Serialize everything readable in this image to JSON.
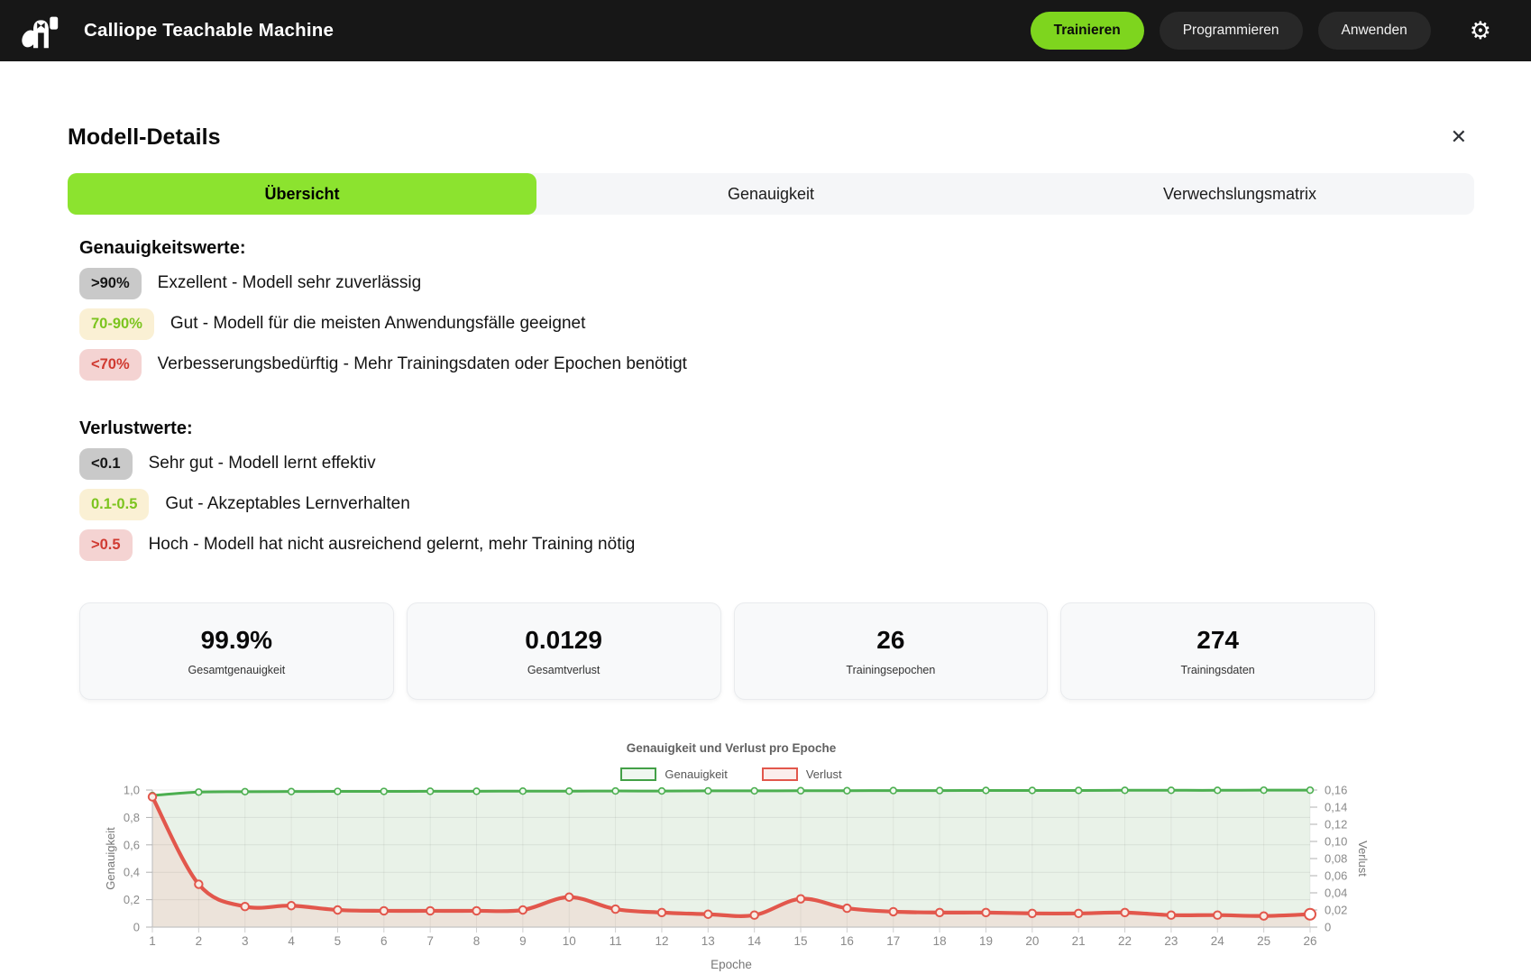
{
  "header": {
    "app_title": "Calliope Teachable Machine",
    "nav": [
      {
        "label": "Trainieren",
        "active": true
      },
      {
        "label": "Programmieren",
        "active": false
      },
      {
        "label": "Anwenden",
        "active": false
      }
    ],
    "settings_glyph": "⚙"
  },
  "modal": {
    "title": "Modell-Details",
    "close_glyph": "✕",
    "tabs": [
      {
        "label": "Übersicht",
        "active": true
      },
      {
        "label": "Genauigkeit",
        "active": false
      },
      {
        "label": "Verwechslungsmatrix",
        "active": false
      }
    ],
    "accuracy_info": {
      "heading": "Genauigkeitswerte:",
      "rows": [
        {
          "badge": ">90%",
          "level": "neutral",
          "text": "Exzellent - Modell sehr zuverlässig"
        },
        {
          "badge": "70-90%",
          "level": "good",
          "text": "Gut - Modell für die meisten Anwendungsfälle geeignet"
        },
        {
          "badge": "<70%",
          "level": "bad",
          "text": "Verbesserungsbedürftig - Mehr Trainingsdaten oder Epochen benötigt"
        }
      ]
    },
    "loss_info": {
      "heading": "Verlustwerte:",
      "rows": [
        {
          "badge": "<0.1",
          "level": "neutral",
          "text": "Sehr gut - Modell lernt effektiv"
        },
        {
          "badge": "0.1-0.5",
          "level": "good",
          "text": "Gut - Akzeptables Lernverhalten"
        },
        {
          "badge": ">0.5",
          "level": "bad",
          "text": "Hoch - Modell hat nicht ausreichend gelernt, mehr Training nötig"
        }
      ]
    },
    "stats": [
      {
        "value": "99.9%",
        "label": "Gesamtgenauigkeit"
      },
      {
        "value": "0.0129",
        "label": "Gesamtverlust"
      },
      {
        "value": "26",
        "label": "Trainingsepochen"
      },
      {
        "value": "274",
        "label": "Trainingsdaten"
      }
    ]
  },
  "chart_data": {
    "type": "line",
    "title": "Genauigkeit und Verlust pro Epoche",
    "xlabel": "Epoche",
    "x": [
      1,
      2,
      3,
      4,
      5,
      6,
      7,
      8,
      9,
      10,
      11,
      12,
      13,
      14,
      15,
      16,
      17,
      18,
      19,
      20,
      21,
      22,
      23,
      24,
      25,
      26
    ],
    "series": [
      {
        "name": "Genauigkeit",
        "axis": "left",
        "color": "#4caf50",
        "fill": "#e9f2e8",
        "values": [
          0.96,
          0.985,
          0.988,
          0.989,
          0.99,
          0.99,
          0.991,
          0.991,
          0.992,
          0.992,
          0.993,
          0.993,
          0.994,
          0.994,
          0.995,
          0.995,
          0.996,
          0.996,
          0.997,
          0.997,
          0.997,
          0.998,
          0.998,
          0.998,
          0.999,
          0.999
        ]
      },
      {
        "name": "Verlust",
        "axis": "right",
        "color": "#e2574c",
        "fill": "#ece3da",
        "values": [
          0.152,
          0.05,
          0.024,
          0.025,
          0.02,
          0.019,
          0.019,
          0.019,
          0.02,
          0.035,
          0.021,
          0.017,
          0.015,
          0.014,
          0.033,
          0.022,
          0.018,
          0.017,
          0.017,
          0.016,
          0.016,
          0.017,
          0.014,
          0.014,
          0.013,
          0.015
        ]
      }
    ],
    "axes": {
      "left": {
        "label": "Genauigkeit",
        "min": 0,
        "max": 1,
        "ticks": [
          1,
          0.8,
          0.6,
          0.4,
          0.2,
          0
        ],
        "tick_labels": [
          "1,0",
          "0,8",
          "0,6",
          "0,4",
          "0,2",
          "0"
        ]
      },
      "right": {
        "label": "Verlust",
        "min": 0,
        "max": 0.16,
        "ticks": [
          0.16,
          0.14,
          0.12,
          0.1,
          0.08,
          0.06,
          0.04,
          0.02,
          0
        ],
        "tick_labels": [
          "0,16",
          "0,14",
          "0,12",
          "0,10",
          "0,08",
          "0,06",
          "0,04",
          "0,02",
          "0"
        ]
      }
    },
    "grid": true,
    "legend_position": "top"
  }
}
